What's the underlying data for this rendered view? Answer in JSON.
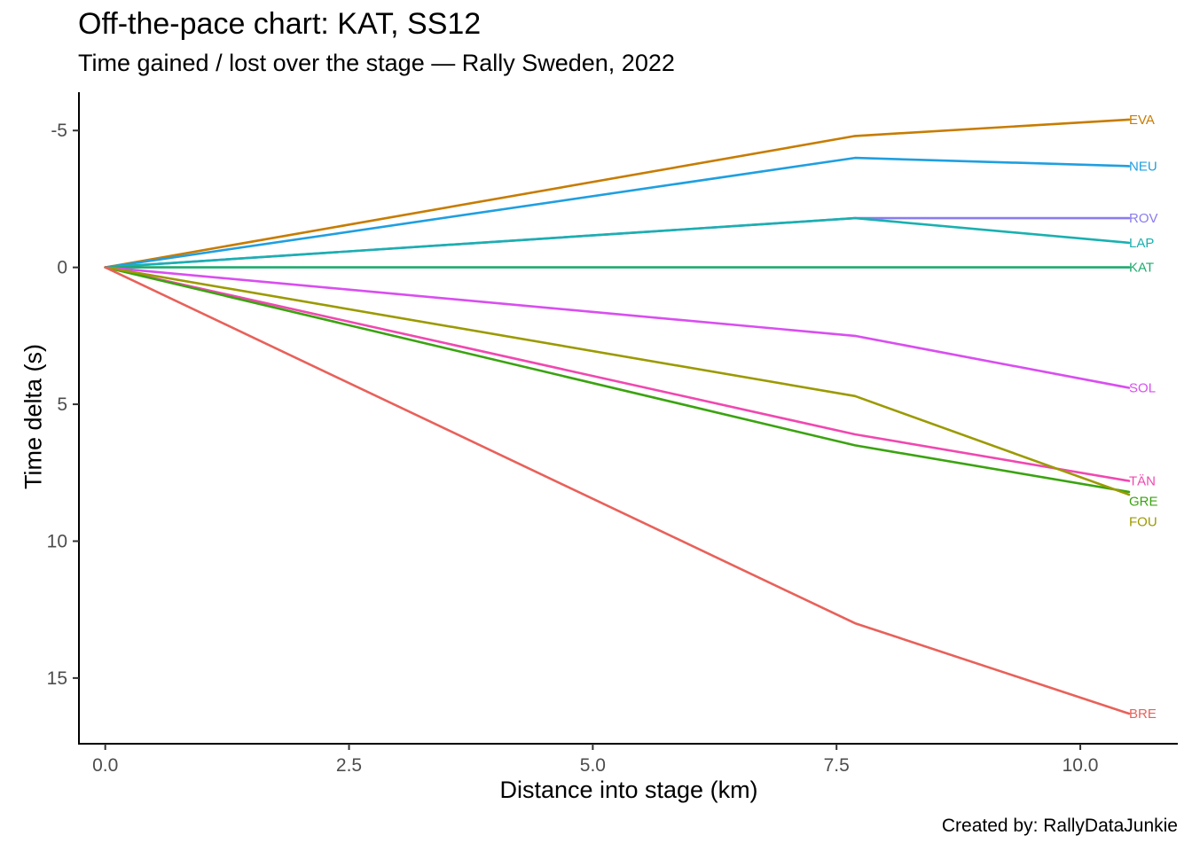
{
  "chart_data": {
    "type": "line",
    "title": "Off-the-pace chart: KAT, SS12",
    "subtitle": "Time gained / lost over the stage — Rally Sweden, 2022",
    "xlabel": "Distance into stage (km)",
    "ylabel": "Time delta (s)",
    "caption": "Created by: RallyDataJunkie",
    "xlim": [
      -0.27,
      11.0
    ],
    "ylim": [
      -6.4,
      17.4
    ],
    "y_reversed": true,
    "x_ticks": [
      0.0,
      2.5,
      5.0,
      7.5,
      10.0
    ],
    "x_tick_labels": [
      "0.0",
      "2.5",
      "5.0",
      "7.5",
      "10.0"
    ],
    "y_ticks": [
      -5,
      0,
      5,
      10,
      15
    ],
    "y_tick_labels": [
      "-5",
      "0",
      "5",
      "10",
      "15"
    ],
    "grid": false,
    "legend": "none (direct labels at line ends)",
    "x": [
      0,
      7.69,
      10.5
    ],
    "series": [
      {
        "name": "EVA",
        "color": "#C77C00",
        "values": [
          0,
          -4.8,
          -5.4
        ]
      },
      {
        "name": "NEU",
        "color": "#1F9FE0",
        "values": [
          0,
          -4.0,
          -3.7
        ]
      },
      {
        "name": "ROV",
        "color": "#8A7BF0",
        "values": [
          0,
          -1.8,
          -1.8
        ]
      },
      {
        "name": "LAP",
        "color": "#1AB0B0",
        "values": [
          0,
          -1.8,
          -0.9
        ]
      },
      {
        "name": "KAT",
        "color": "#1DAA6E",
        "values": [
          0,
          0,
          0
        ]
      },
      {
        "name": "SOL",
        "color": "#D94EF0",
        "values": [
          0,
          2.5,
          4.4
        ]
      },
      {
        "name": "TÄN",
        "color": "#F048B0",
        "values": [
          0,
          6.1,
          7.8
        ]
      },
      {
        "name": "GRE",
        "color": "#3AA310",
        "values": [
          0,
          6.5,
          8.2
        ]
      },
      {
        "name": "FOU",
        "color": "#9B9A00",
        "values": [
          0,
          4.7,
          8.3
        ]
      },
      {
        "name": "BRE",
        "color": "#E8615A",
        "values": [
          0,
          13.0,
          16.3
        ]
      }
    ]
  }
}
